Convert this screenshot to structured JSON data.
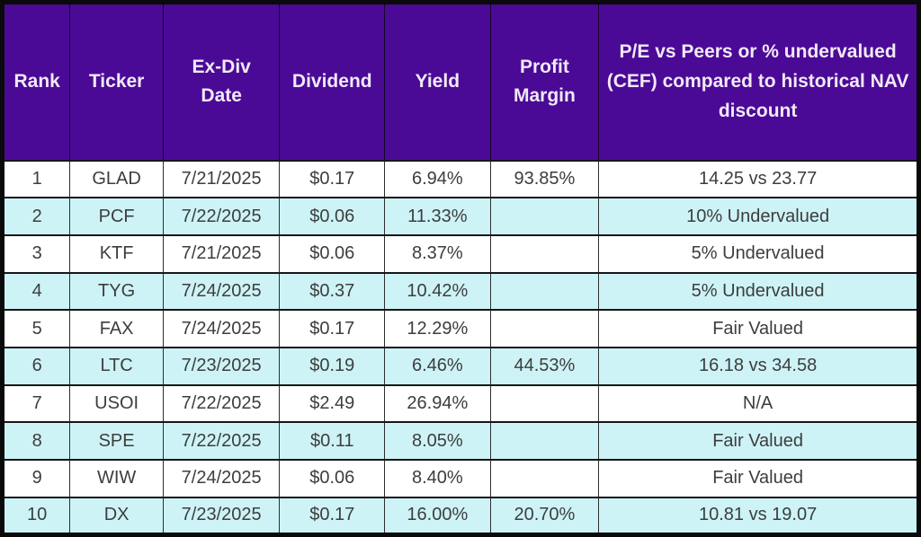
{
  "table": {
    "name": "dividend-stocks-ranking-table",
    "columns": [
      {
        "key": "rank",
        "label": "Rank"
      },
      {
        "key": "ticker",
        "label": "Ticker"
      },
      {
        "key": "ex_div_date",
        "label": "Ex-Div Date"
      },
      {
        "key": "dividend",
        "label": "Dividend"
      },
      {
        "key": "yield",
        "label": "Yield"
      },
      {
        "key": "profit_margin",
        "label": "Profit Margin"
      },
      {
        "key": "pe_vs_peers",
        "label": "P/E vs Peers or % undervalued (CEF) compared to historical NAV discount"
      }
    ],
    "rows": [
      {
        "rank": "1",
        "ticker": "GLAD",
        "ex_div_date": "7/21/2025",
        "dividend": "$0.17",
        "yield": "6.94%",
        "profit_margin": "93.85%",
        "pe_vs_peers": "14.25 vs 23.77"
      },
      {
        "rank": "2",
        "ticker": "PCF",
        "ex_div_date": "7/22/2025",
        "dividend": "$0.06",
        "yield": "11.33%",
        "profit_margin": "",
        "pe_vs_peers": "10% Undervalued"
      },
      {
        "rank": "3",
        "ticker": "KTF",
        "ex_div_date": "7/21/2025",
        "dividend": "$0.06",
        "yield": "8.37%",
        "profit_margin": "",
        "pe_vs_peers": "5% Undervalued"
      },
      {
        "rank": "4",
        "ticker": "TYG",
        "ex_div_date": "7/24/2025",
        "dividend": "$0.37",
        "yield": "10.42%",
        "profit_margin": "",
        "pe_vs_peers": "5% Undervalued"
      },
      {
        "rank": "5",
        "ticker": "FAX",
        "ex_div_date": "7/24/2025",
        "dividend": "$0.17",
        "yield": "12.29%",
        "profit_margin": "",
        "pe_vs_peers": "Fair Valued"
      },
      {
        "rank": "6",
        "ticker": "LTC",
        "ex_div_date": "7/23/2025",
        "dividend": "$0.19",
        "yield": "6.46%",
        "profit_margin": "44.53%",
        "pe_vs_peers": "16.18 vs 34.58"
      },
      {
        "rank": "7",
        "ticker": "USOI",
        "ex_div_date": "7/22/2025",
        "dividend": "$2.49",
        "yield": "26.94%",
        "profit_margin": "",
        "pe_vs_peers": "N/A"
      },
      {
        "rank": "8",
        "ticker": "SPE",
        "ex_div_date": "7/22/2025",
        "dividend": "$0.11",
        "yield": "8.05%",
        "profit_margin": "",
        "pe_vs_peers": "Fair Valued"
      },
      {
        "rank": "9",
        "ticker": "WIW",
        "ex_div_date": "7/24/2025",
        "dividend": "$0.06",
        "yield": "8.40%",
        "profit_margin": "",
        "pe_vs_peers": "Fair Valued"
      },
      {
        "rank": "10",
        "ticker": "DX",
        "ex_div_date": "7/23/2025",
        "dividend": "$0.17",
        "yield": "16.00%",
        "profit_margin": "20.70%",
        "pe_vs_peers": "10.81 vs 19.07"
      }
    ]
  },
  "colors": {
    "header_bg": "#4a0a96",
    "header_text": "#f2e9f6",
    "row_bg": "#ffffff",
    "row_alt_bg": "#cdf3f6",
    "body_text": "#3d3d3d",
    "outer_border": "#0a0a0a"
  }
}
